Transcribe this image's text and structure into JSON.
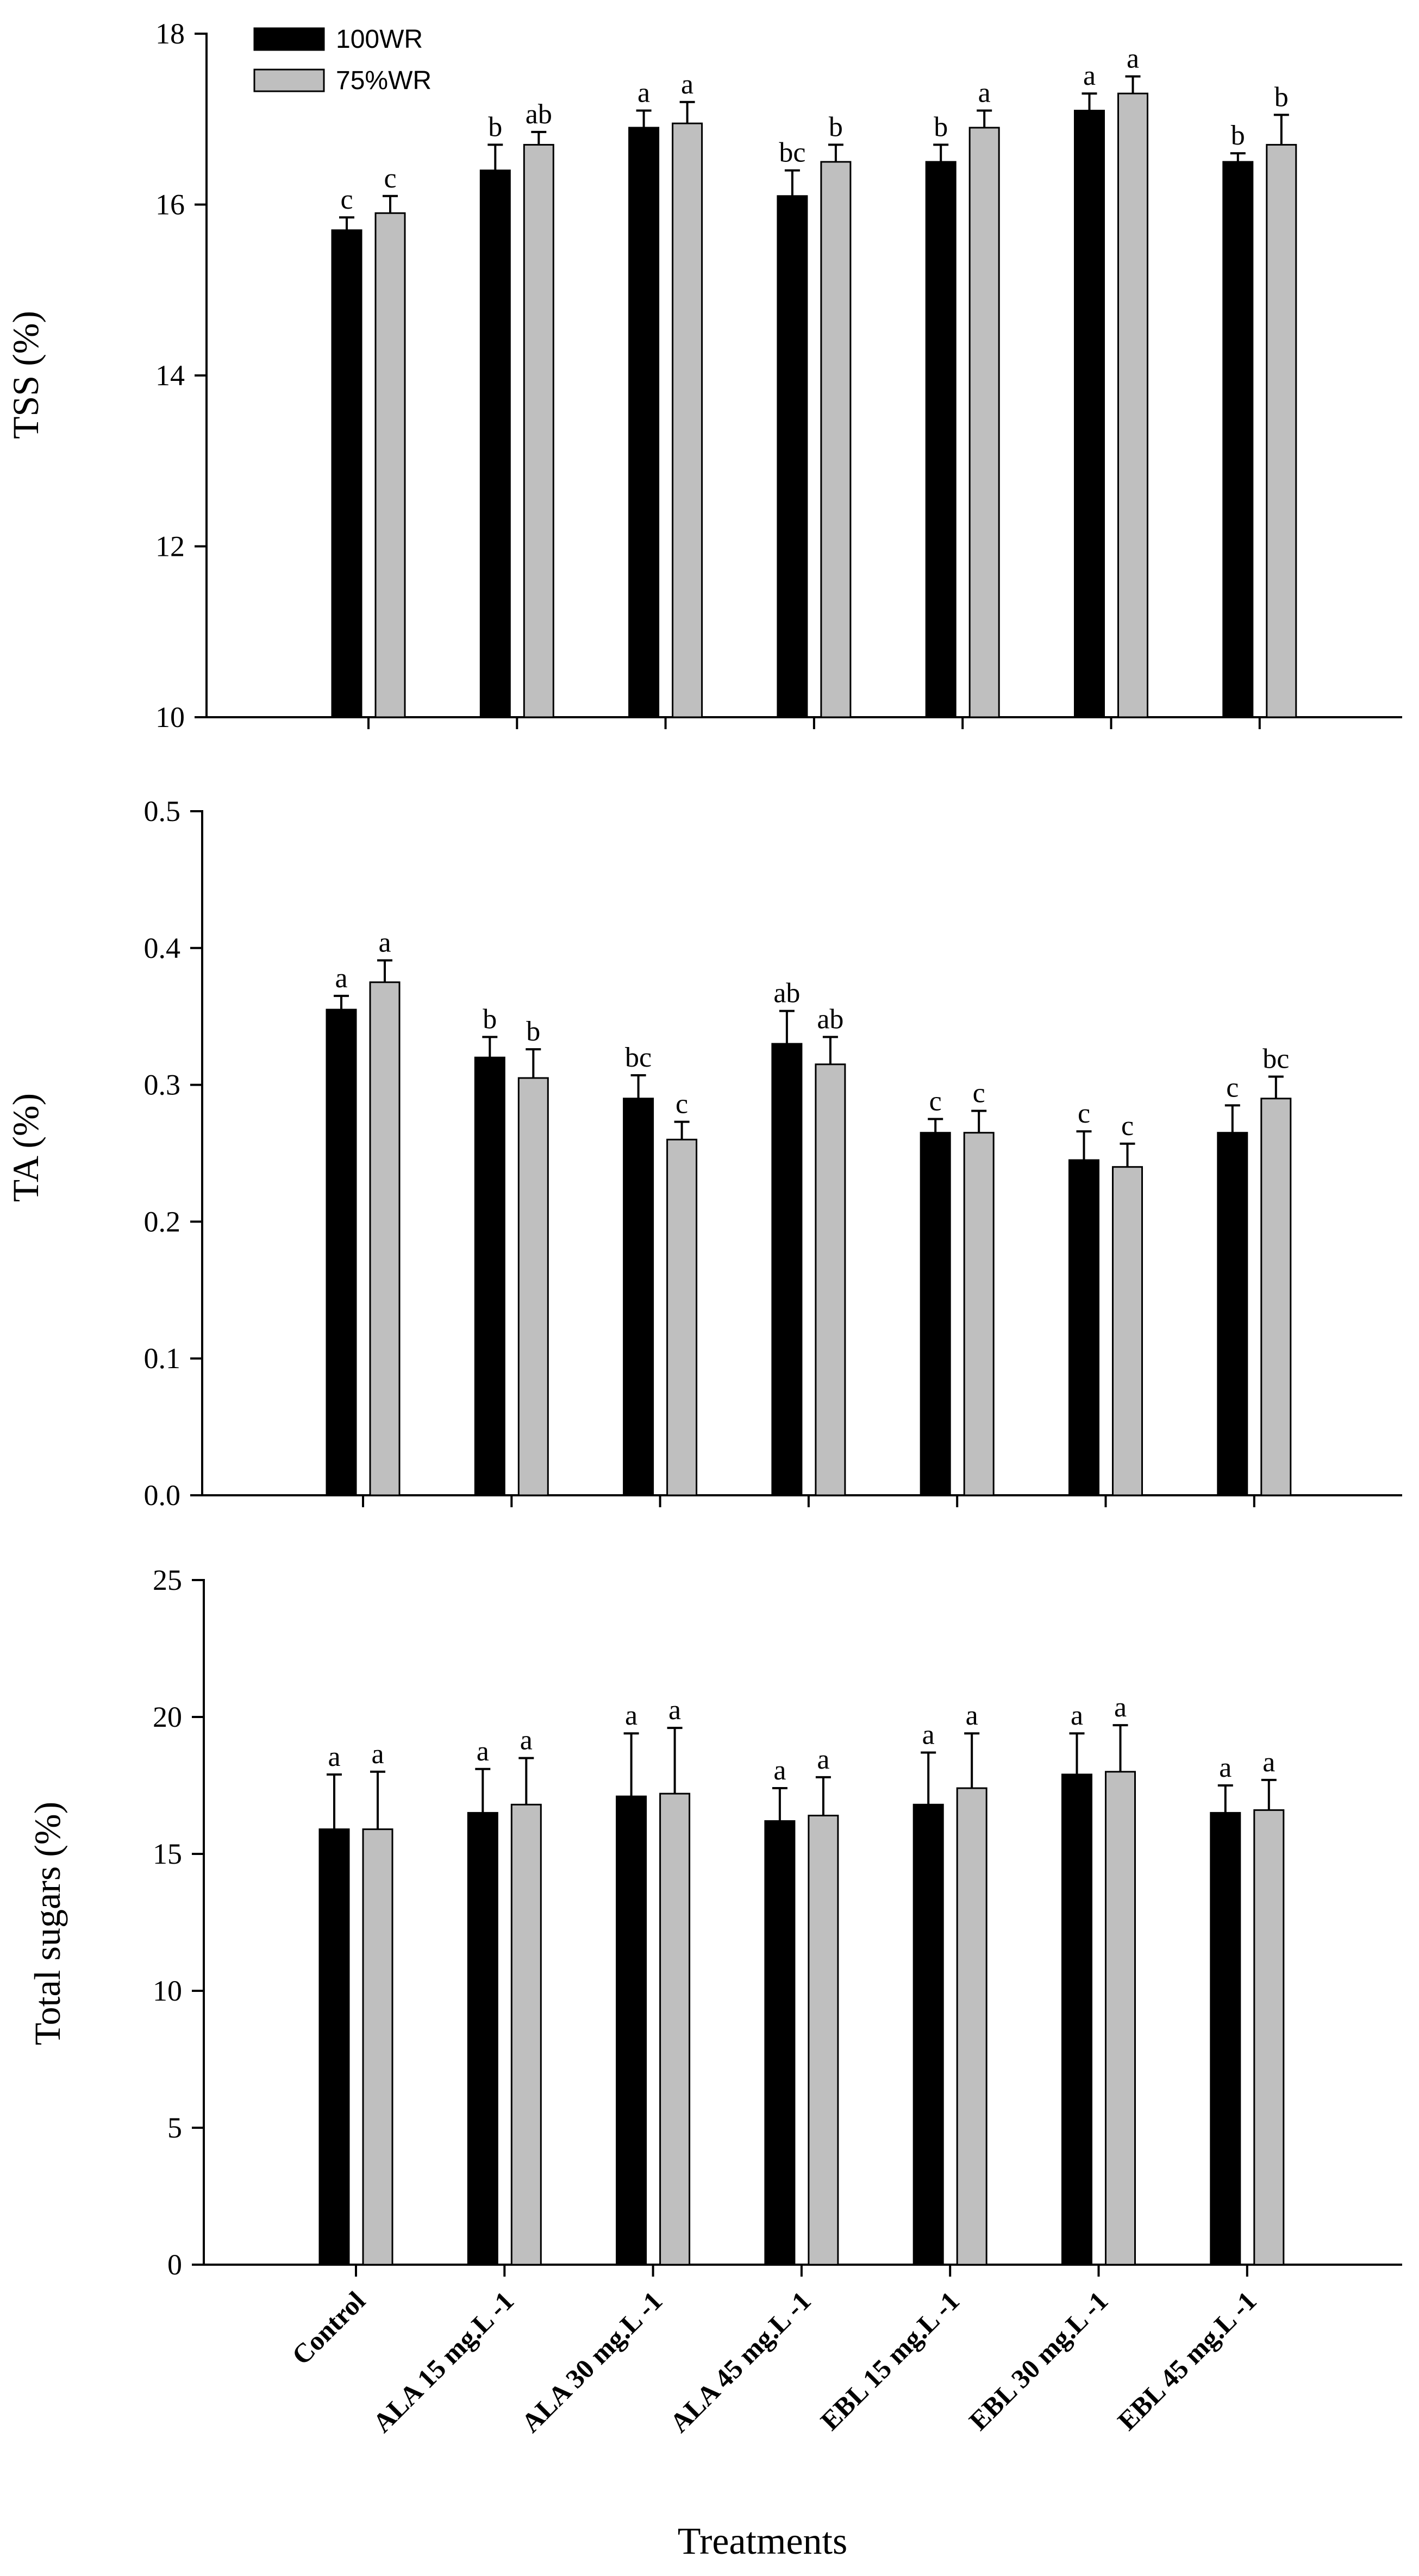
{
  "series_colors": {
    "100WR": "#000000",
    "75%WR": "#bfbfbf"
  },
  "legend": [
    {
      "name": "100WR",
      "color": "#000000"
    },
    {
      "name": "75%WR",
      "color": "#bfbfbf"
    }
  ],
  "xlabel": "Treatments",
  "chart_data": [
    {
      "type": "bar",
      "title": "",
      "ylabel": "TSS (%)",
      "xlabel": "",
      "ylim": [
        10,
        18
      ],
      "yticks": [
        10,
        12,
        14,
        16,
        18
      ],
      "ytick_labels": [
        "10",
        "12",
        "14",
        "16",
        "18"
      ],
      "categories": [
        "Control",
        "ALA 15 mg.L -1",
        "ALA 30 mg.L -1",
        "ALA 45 mg.L -1",
        "EBL 15 mg.L -1",
        "EBL 30 mg.L -1",
        "EBL 45 mg.L -1"
      ],
      "series": [
        {
          "name": "100WR",
          "values": [
            15.7,
            16.4,
            16.9,
            16.1,
            16.5,
            17.1,
            16.5
          ],
          "errors": [
            0.15,
            0.3,
            0.2,
            0.3,
            0.2,
            0.2,
            0.1
          ],
          "letters": [
            "c",
            "b",
            "a",
            "bc",
            "b",
            "a",
            "b"
          ]
        },
        {
          "name": "75%WR",
          "values": [
            15.9,
            16.7,
            16.95,
            16.5,
            16.9,
            17.3,
            16.7
          ],
          "errors": [
            0.2,
            0.15,
            0.25,
            0.2,
            0.2,
            0.2,
            0.35
          ],
          "letters": [
            "c",
            "ab",
            "a",
            "b",
            "a",
            "a",
            "b"
          ]
        }
      ]
    },
    {
      "type": "bar",
      "title": "",
      "ylabel": "TA (%)",
      "xlabel": "",
      "ylim": [
        0,
        0.5
      ],
      "yticks": [
        0,
        0.1,
        0.2,
        0.3,
        0.4,
        0.5
      ],
      "ytick_labels": [
        "0.0",
        "0.1",
        "0.2",
        "0.3",
        "0.4",
        "0.5"
      ],
      "categories": [
        "Control",
        "ALA 15 mg.L -1",
        "ALA 30 mg.L -1",
        "ALA 45 mg.L -1",
        "EBL 15 mg.L -1",
        "EBL 30 mg.L -1",
        "EBL 45 mg.L -1"
      ],
      "series": [
        {
          "name": "100WR",
          "values": [
            0.355,
            0.32,
            0.29,
            0.33,
            0.265,
            0.245,
            0.265
          ],
          "errors": [
            0.01,
            0.015,
            0.017,
            0.024,
            0.01,
            0.021,
            0.02
          ],
          "letters": [
            "a",
            "b",
            "bc",
            "ab",
            "c",
            "c",
            "c"
          ]
        },
        {
          "name": "75%WR",
          "values": [
            0.375,
            0.305,
            0.26,
            0.315,
            0.265,
            0.24,
            0.29
          ],
          "errors": [
            0.016,
            0.021,
            0.013,
            0.02,
            0.016,
            0.017,
            0.016
          ],
          "letters": [
            "a",
            "b",
            "c",
            "ab",
            "c",
            "c",
            "bc"
          ]
        }
      ]
    },
    {
      "type": "bar",
      "title": "",
      "ylabel": "Total sugars (%)",
      "xlabel": "Treatments",
      "ylim": [
        0,
        25
      ],
      "yticks": [
        0,
        5,
        10,
        15,
        20,
        25
      ],
      "ytick_labels": [
        "0",
        "5",
        "10",
        "15",
        "20",
        "25"
      ],
      "categories": [
        "Control",
        "ALA 15 mg.L -1",
        "ALA 30 mg.L -1",
        "ALA 45 mg.L -1",
        "EBL 15 mg.L -1",
        "EBL 30 mg.L -1",
        "EBL 45 mg.L -1"
      ],
      "series": [
        {
          "name": "100WR",
          "values": [
            15.9,
            16.5,
            17.1,
            16.2,
            16.8,
            17.9,
            16.5
          ],
          "errors": [
            2.0,
            1.6,
            2.3,
            1.2,
            1.9,
            1.5,
            1.0
          ],
          "letters": [
            "a",
            "a",
            "a",
            "a",
            "a",
            "a",
            "a"
          ]
        },
        {
          "name": "75%WR",
          "values": [
            15.9,
            16.8,
            17.2,
            16.4,
            17.4,
            18.0,
            16.6
          ],
          "errors": [
            2.1,
            1.7,
            2.4,
            1.4,
            2.0,
            1.7,
            1.1
          ],
          "letters": [
            "a",
            "a",
            "a",
            "a",
            "a",
            "a",
            "a"
          ]
        }
      ]
    }
  ]
}
